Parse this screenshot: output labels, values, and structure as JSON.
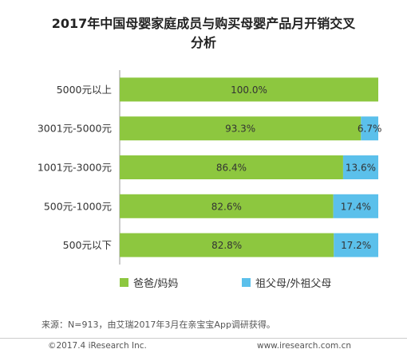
{
  "title_line1": "2017年中国母婴家庭成员与购买母婴产品月开销交叉",
  "title_line2": "分析",
  "chart_data": {
    "type": "bar",
    "orientation": "horizontal",
    "stacked": true,
    "categories": [
      "5000元以上",
      "3001元-5000元",
      "1001元-3000元",
      "500元-1000元",
      "500元以下"
    ],
    "series": [
      {
        "name": "爸爸/妈妈",
        "values": [
          100.0,
          93.3,
          86.4,
          82.6,
          82.8
        ],
        "labels": [
          "100.0%",
          "93.3%",
          "86.4%",
          "82.6%",
          "82.8%"
        ]
      },
      {
        "name": "祖父母/外祖父母",
        "values": [
          0.0,
          6.7,
          13.6,
          17.4,
          17.2
        ],
        "labels": [
          "",
          "6.7%",
          "13.6%",
          "17.4%",
          "17.2%"
        ]
      }
    ],
    "xlim": [
      0,
      100
    ],
    "legend_position": "bottom",
    "colors": [
      "#8dc73f",
      "#5bc0eb"
    ],
    "grid": false
  },
  "source": "来源：N=913，由艾瑞2017年3月在亲宝宝App调研获得。",
  "footer_left": "©2017.4 iResearch Inc.",
  "footer_right": "www.iresearch.com.cn"
}
